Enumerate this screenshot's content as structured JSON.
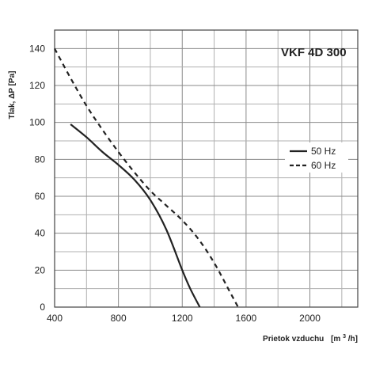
{
  "chart_data": {
    "type": "line",
    "title": "VKF 4D 300",
    "xlabel_prefix": "Prietok vzduchu",
    "xlabel_unit_open": "[m",
    "xlabel_unit_sup": "3",
    "xlabel_unit_close": "/h]",
    "ylabel": "Tlak, ΔP [Pa]",
    "xlim": [
      400,
      2300
    ],
    "ylim": [
      0,
      150
    ],
    "x_ticks": [
      400,
      800,
      1200,
      1600,
      2000
    ],
    "y_ticks": [
      0,
      20,
      40,
      60,
      80,
      100,
      120,
      140
    ],
    "grid": true,
    "legend_position": "right",
    "series": [
      {
        "name": "50 Hz",
        "style": "solid",
        "color": "#222222",
        "x": [
          500,
          600,
          700,
          800,
          900,
          1000,
          1100,
          1200,
          1250,
          1310
        ],
        "y": [
          99,
          92,
          84,
          77,
          69,
          58,
          42,
          20,
          10,
          0
        ]
      },
      {
        "name": "60 Hz",
        "style": "dashed",
        "color": "#222222",
        "x": [
          400,
          500,
          600,
          700,
          800,
          900,
          1000,
          1100,
          1200,
          1300,
          1400,
          1500,
          1550
        ],
        "y": [
          140,
          124,
          109,
          96,
          84,
          73,
          63,
          55,
          47,
          37,
          24,
          8,
          0
        ]
      }
    ]
  }
}
